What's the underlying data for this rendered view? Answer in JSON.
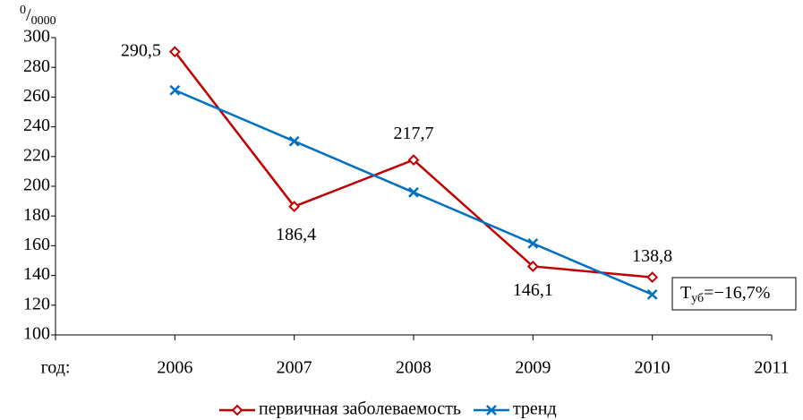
{
  "chart_data": {
    "type": "line",
    "y_unit": [
      "0",
      "/",
      "0000"
    ],
    "x_label": "год:",
    "categories": [
      "2006",
      "2007",
      "2008",
      "2009",
      "2010",
      "2011"
    ],
    "series": [
      {
        "name": "первичная заболеваемость",
        "color": "#c00000",
        "marker": "diamond",
        "values": [
          290.5,
          186.4,
          217.7,
          146.1,
          138.8,
          null
        ],
        "value_labels": [
          "290,5",
          "186,4",
          "217,7",
          "146,1",
          "138,8",
          null
        ]
      },
      {
        "name": "тренд",
        "color": "#0070c0",
        "marker": "x",
        "values": [
          264.6,
          230.3,
          195.9,
          161.5,
          127.2,
          null
        ]
      }
    ],
    "annotation": [
      "T",
      "уб",
      "=−16,7%"
    ],
    "ylim": [
      100,
      300
    ],
    "yticks": [
      100,
      120,
      140,
      160,
      180,
      200,
      220,
      240,
      260,
      280,
      300
    ],
    "grid": false,
    "legend": "bottom"
  }
}
